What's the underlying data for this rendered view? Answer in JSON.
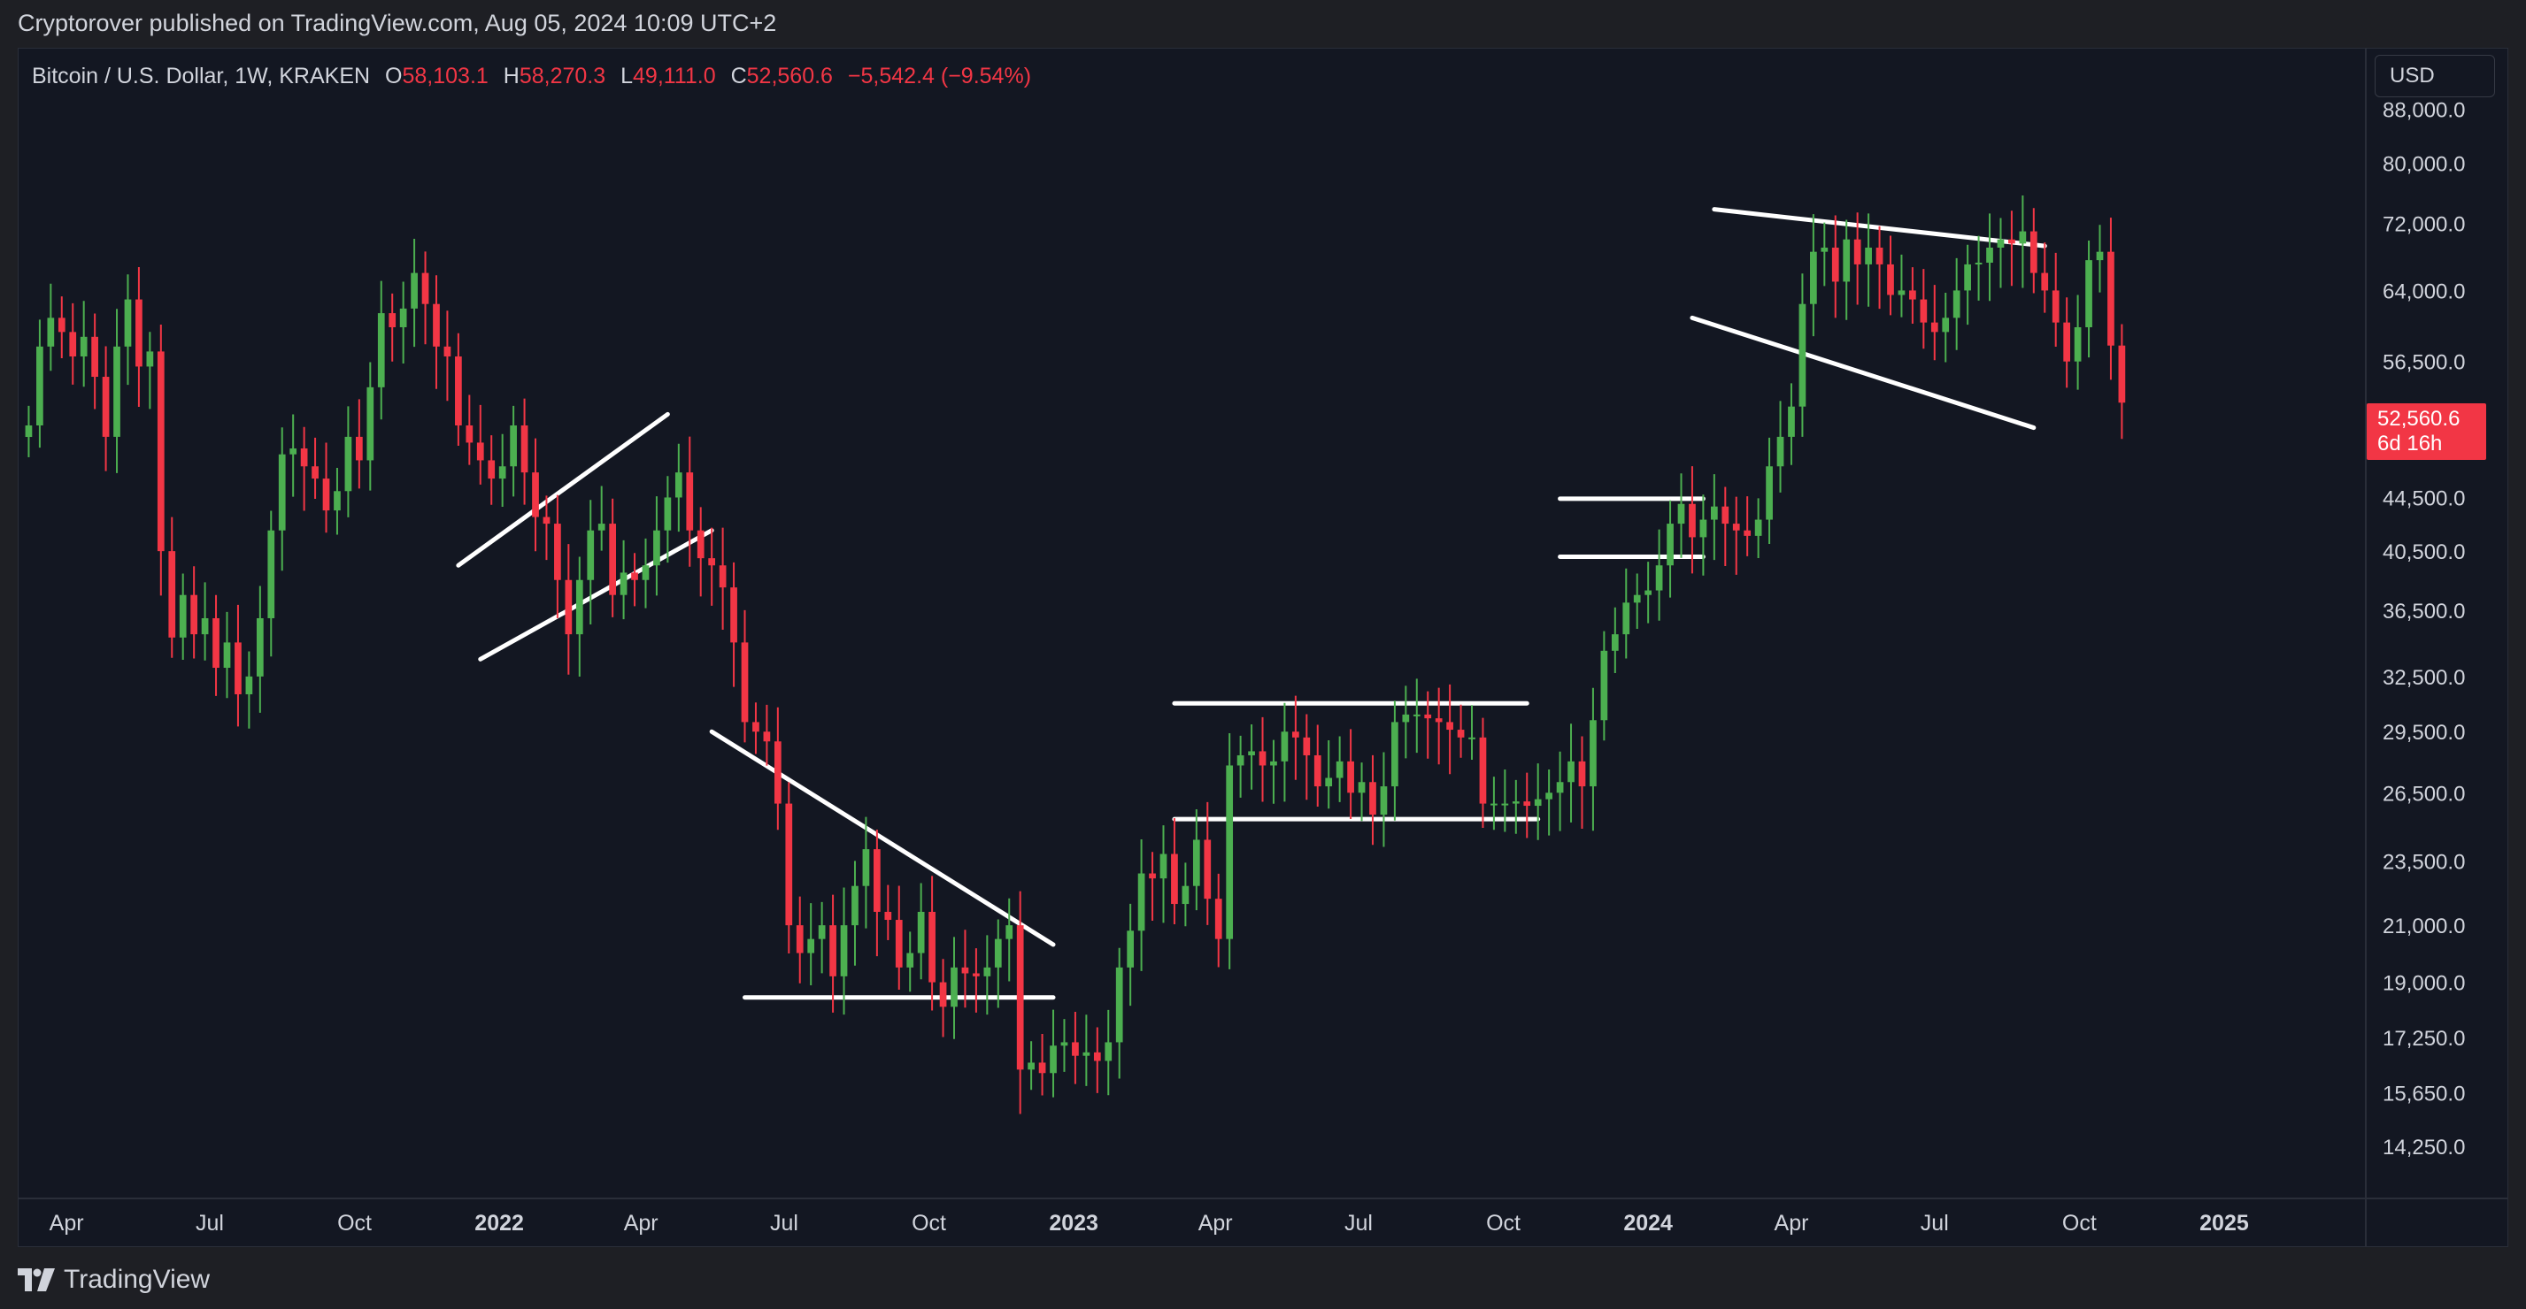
{
  "header": {
    "published": "Cryptorover published on TradingView.com, Aug 05, 2024 10:09 UTC+2"
  },
  "legend": {
    "symbol": "Bitcoin / U.S. Dollar, 1W, KRAKEN",
    "o_label": "O",
    "o_value": "58,103.1",
    "h_label": "H",
    "h_value": "58,270.3",
    "l_label": "L",
    "l_value": "49,111.0",
    "c_label": "C",
    "c_value": "52,560.6",
    "change": "−5,542.4 (−9.54%)"
  },
  "currency_button": "USD",
  "last_price": {
    "value": "52,560.6",
    "countdown": "6d 16h"
  },
  "branding": {
    "logo_text": "TradingView",
    "logo_icon": "tradingview-logo-icon"
  },
  "colors": {
    "background": "#131722",
    "up": "#4caf50",
    "down": "#f23645",
    "text": "#d1d4dc",
    "grid": "#2a2e39",
    "drawing": "#ffffff"
  },
  "chart_data": {
    "type": "candlestick",
    "interval": "1W",
    "scale": "log",
    "ylim": [
      13000,
      98000
    ],
    "x_range": [
      "2021-03-01",
      "2025-04-01"
    ],
    "y_ticks": [
      "88,000.0",
      "80,000.0",
      "72,000.0",
      "64,000.0",
      "56,500.0",
      "44,500.0",
      "40,500.0",
      "36,500.0",
      "32,500.0",
      "29,500.0",
      "26,500.0",
      "23,500.0",
      "21,000.0",
      "19,000.0",
      "17,250.0",
      "15,650.0",
      "14,250.0"
    ],
    "x_ticks": [
      {
        "label": "Apr",
        "date": "2021-04-01",
        "bold": false
      },
      {
        "label": "Jul",
        "date": "2021-07-01",
        "bold": false
      },
      {
        "label": "Oct",
        "date": "2021-10-01",
        "bold": false
      },
      {
        "label": "2022",
        "date": "2022-01-01",
        "bold": true
      },
      {
        "label": "Apr",
        "date": "2022-04-01",
        "bold": false
      },
      {
        "label": "Jul",
        "date": "2022-07-01",
        "bold": false
      },
      {
        "label": "Oct",
        "date": "2022-10-01",
        "bold": false
      },
      {
        "label": "2023",
        "date": "2023-01-01",
        "bold": true
      },
      {
        "label": "Apr",
        "date": "2023-04-01",
        "bold": false
      },
      {
        "label": "Jul",
        "date": "2023-07-01",
        "bold": false
      },
      {
        "label": "Oct",
        "date": "2023-10-01",
        "bold": false
      },
      {
        "label": "2024",
        "date": "2024-01-01",
        "bold": true
      },
      {
        "label": "Apr",
        "date": "2024-04-01",
        "bold": false
      },
      {
        "label": "Jul",
        "date": "2024-07-01",
        "bold": false
      },
      {
        "label": "Oct",
        "date": "2024-10-01",
        "bold": false
      },
      {
        "label": "2025",
        "date": "2025-01-01",
        "bold": true
      }
    ],
    "series": [
      {
        "start_date": "2021-03-08",
        "interval_days": 7,
        "closes": [
          50500,
          58000,
          61000,
          59500,
          57000,
          59000,
          55000,
          49500,
          58000,
          63000,
          56000,
          57500,
          40500,
          34800,
          37500,
          35000,
          36000,
          33000,
          34500,
          31500,
          32500,
          36000,
          42000,
          48000,
          48500,
          47000,
          46000,
          43500,
          45000,
          49500,
          47500,
          54000,
          61500,
          60000,
          62000,
          66000,
          62500,
          58000,
          57000,
          50500,
          49000,
          47500,
          46000,
          47000,
          50500,
          46500,
          43000,
          42500,
          38500,
          35000,
          38500,
          42000,
          42500,
          37500,
          39000,
          38500,
          39500,
          42000,
          44500,
          46500,
          42000,
          40000,
          39500,
          38000,
          34500,
          30000,
          29500,
          29000,
          26000,
          21000,
          20000,
          20500,
          21000,
          19200,
          21000,
          22500,
          24000,
          21500,
          21200,
          19500,
          20000,
          21500,
          19000,
          18200,
          19500,
          19300,
          19200,
          19500,
          20500,
          21000,
          16300,
          16500,
          16200,
          17000,
          17100,
          16700,
          16800,
          16550,
          17100,
          19500,
          20800,
          23000,
          22800,
          23800,
          21800,
          22500,
          24400,
          22000,
          20500,
          27800,
          28300,
          28500,
          27800,
          28000,
          29500,
          29200,
          28300,
          26800,
          27200,
          28000,
          26500,
          27000,
          25500,
          26800,
          30000,
          30400,
          30400,
          30200,
          30000,
          29600,
          29200,
          29200,
          26000,
          26000,
          26000,
          26100,
          25900,
          26200,
          26500,
          27000,
          28000,
          26800,
          30100,
          34000,
          35000,
          37000,
          37500,
          37800,
          39500,
          42500,
          44000,
          41500,
          42800,
          43800,
          42500,
          42000,
          41600,
          42800,
          47000,
          49500,
          52200,
          62500,
          68500,
          69000,
          65000,
          70000,
          67000,
          69000,
          67000,
          63500,
          64000,
          63000,
          60500,
          59500,
          61000,
          64000,
          67000,
          67200,
          69000,
          70000,
          69500,
          71000,
          66000,
          64000,
          60500,
          56500,
          60000,
          67500,
          68500,
          58100,
          52560.6
        ]
      }
    ],
    "drawings": [
      {
        "type": "trendline",
        "from": [
          "2021-12-06",
          39500
        ],
        "to": [
          "2022-04-18",
          51500
        ]
      },
      {
        "type": "trendline",
        "from": [
          "2021-12-20",
          33500
        ],
        "to": [
          "2022-05-16",
          42000
        ]
      },
      {
        "type": "trendline",
        "from": [
          "2022-05-16",
          29500
        ],
        "to": [
          "2022-12-19",
          20300
        ]
      },
      {
        "type": "trendline",
        "from": [
          "2022-06-06",
          18500
        ],
        "to": [
          "2022-12-19",
          18500
        ]
      },
      {
        "type": "trendline",
        "from": [
          "2023-03-06",
          31000
        ],
        "to": [
          "2023-10-16",
          31000
        ]
      },
      {
        "type": "trendline",
        "from": [
          "2023-03-06",
          25300
        ],
        "to": [
          "2023-10-23",
          25300
        ]
      },
      {
        "type": "trendline",
        "from": [
          "2023-11-06",
          44400
        ],
        "to": [
          "2024-02-05",
          44400
        ]
      },
      {
        "type": "trendline",
        "from": [
          "2023-11-06",
          40100
        ],
        "to": [
          "2024-02-05",
          40100
        ]
      },
      {
        "type": "trendline",
        "from": [
          "2024-02-12",
          73800
        ],
        "to": [
          "2024-09-09",
          69200
        ]
      },
      {
        "type": "trendline",
        "from": [
          "2024-01-29",
          61000
        ],
        "to": [
          "2024-09-02",
          50300
        ]
      }
    ]
  }
}
